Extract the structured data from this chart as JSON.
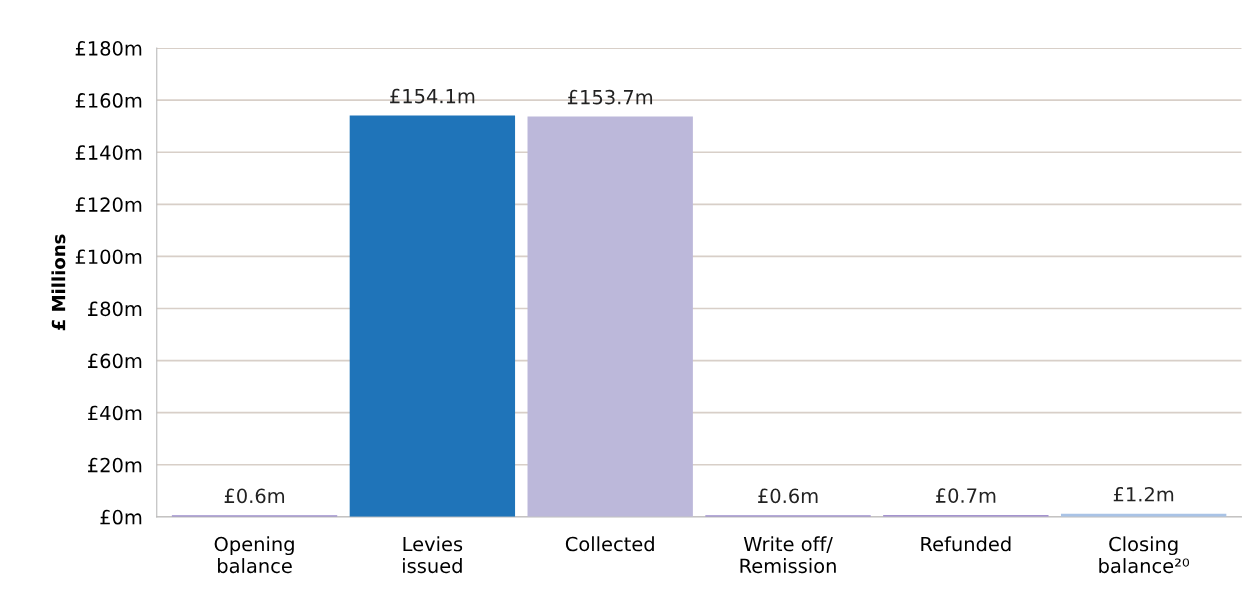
{
  "chart_data": {
    "type": "bar",
    "ylabel": "£ Millions",
    "categories": [
      "Opening\nbalance",
      "Levies\nissued",
      "Collected",
      "Write off/\nRemission",
      "Refunded",
      "Closing\nbalance²⁰"
    ],
    "values": [
      0.6,
      154.1,
      153.7,
      0.6,
      0.7,
      1.2
    ],
    "colors": [
      "#9b8ccc",
      "#1f74b9",
      "#bcb8da",
      "#9b8ccc",
      "#a493cf",
      "#a9c3e6"
    ],
    "value_labels": [
      "£0.6m",
      "£154.1m",
      "£153.7m",
      "£0.6m",
      "£0.7m",
      "£1.2m"
    ],
    "ylim": [
      0,
      180
    ],
    "yticks": [
      {
        "value": 0,
        "label": "£0m"
      },
      {
        "value": 20,
        "label": "£20m"
      },
      {
        "value": 40,
        "label": "£40m"
      },
      {
        "value": 60,
        "label": "£60m"
      },
      {
        "value": 80,
        "label": "£80m"
      },
      {
        "value": 100,
        "label": "£100m"
      },
      {
        "value": 120,
        "label": "£120m"
      },
      {
        "value": 140,
        "label": "£140m"
      },
      {
        "value": 160,
        "label": "£160m"
      },
      {
        "value": 180,
        "label": "£180m"
      }
    ],
    "grid": "y",
    "legend": false
  }
}
